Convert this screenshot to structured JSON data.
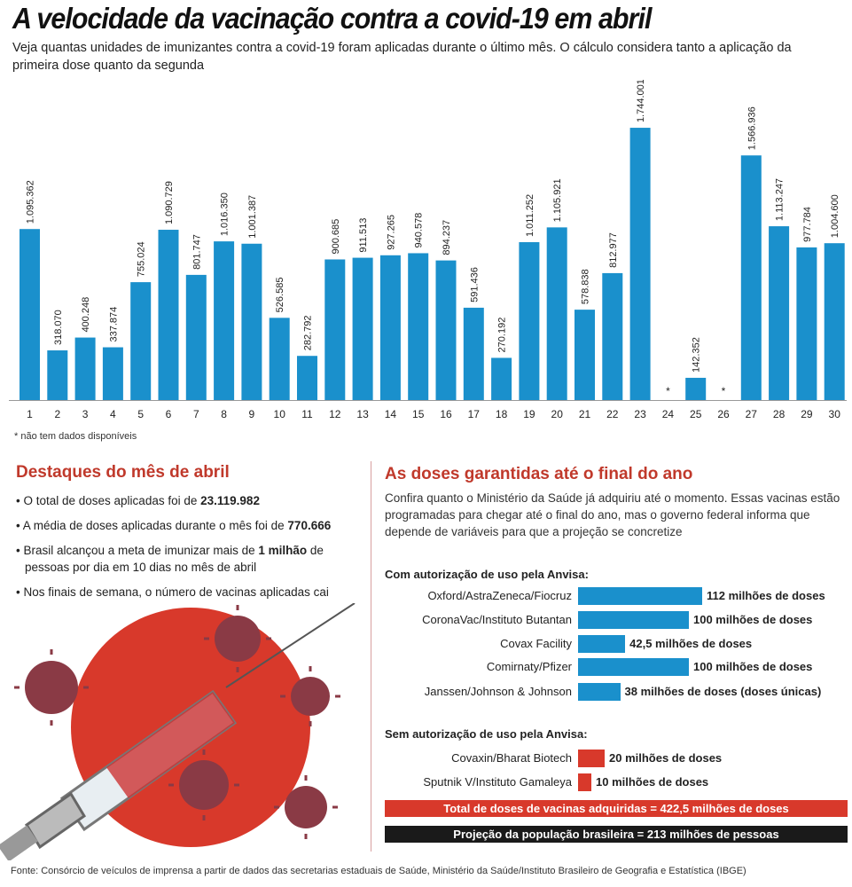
{
  "title": "A velocidade da vacinação contra a covid-19 em abril",
  "subtitle": "Veja quantas unidades de imunizantes contra a covid-19 foram aplicadas durante o último mês. O cálculo considera tanto a aplicação da primeira dose quanto da segunda",
  "note": "* não tem dados disponíveis",
  "colors": {
    "bar": "#1a90cc",
    "accent_red": "#d8392b",
    "black": "#1a1a1a",
    "title_red": "#c0392b"
  },
  "chart_data": [
    {
      "type": "bar",
      "categories": [
        "1",
        "2",
        "3",
        "4",
        "5",
        "6",
        "7",
        "8",
        "9",
        "10",
        "11",
        "12",
        "13",
        "14",
        "15",
        "16",
        "17",
        "18",
        "19",
        "20",
        "21",
        "22",
        "23",
        "24",
        "25",
        "26",
        "27",
        "28",
        "29",
        "30"
      ],
      "values": [
        1095362,
        318070,
        400248,
        337874,
        755024,
        1090729,
        801747,
        1016350,
        1001387,
        526585,
        282792,
        900685,
        911513,
        927265,
        940578,
        894237,
        591436,
        270192,
        1011252,
        1105921,
        578838,
        812977,
        1744001,
        null,
        142352,
        null,
        1566936,
        1113247,
        977784,
        1004600
      ],
      "labels": [
        "1.095.362",
        "318.070",
        "400.248",
        "337.874",
        "755.024",
        "1.090.729",
        "801.747",
        "1.016.350",
        "1.001.387",
        "526.585",
        "282.792",
        "900.685",
        "911.513",
        "927.265",
        "940.578",
        "894.237",
        "591.436",
        "270.192",
        "1.011.252",
        "1.105.921",
        "578.838",
        "812.977",
        "1.744.001",
        "*",
        "142.352",
        "*",
        "1.566.936",
        "1.113.247",
        "977.784",
        "1.004.600"
      ],
      "xlabel": "",
      "ylabel": ""
    },
    {
      "type": "bar",
      "orientation": "horizontal",
      "group": "Com autorização de uso pela Anvisa:",
      "categories": [
        "Oxford/AstraZeneca/Fiocruz",
        "CoronaVac/Instituto Butantan",
        "Covax Facility",
        "Comirnaty/Pfizer",
        "Janssen/Johnson & Johnson"
      ],
      "values": [
        112,
        100,
        42.5,
        100,
        38
      ],
      "labels": [
        "112 milhões de doses",
        "100 milhões de doses",
        "42,5 milhões de doses",
        "100 milhões de doses",
        "38 milhões de doses (doses únicas)"
      ]
    },
    {
      "type": "bar",
      "orientation": "horizontal",
      "group": "Sem autorização de uso pela Anvisa:",
      "categories": [
        "Covaxin/Bharat Biotech",
        "Sputnik V/Instituto Gamaleya"
      ],
      "values": [
        20,
        10
      ],
      "labels": [
        "20 milhões de doses",
        "10 milhões de doses"
      ]
    }
  ],
  "highlights": {
    "title": "Destaques do mês de abril",
    "items": [
      {
        "pre": "O total de doses aplicadas foi de ",
        "bold": "23.119.982",
        "post": ""
      },
      {
        "pre": "A média de doses aplicadas durante o mês foi de ",
        "bold": "770.666",
        "post": ""
      },
      {
        "pre": "Brasil alcançou a meta de imunizar mais de ",
        "bold": "1 milhão",
        "post": " de pessoas por dia em 10 dias no mês de abril"
      },
      {
        "pre": "Nos finais de semana, o número de vacinas aplicadas cai",
        "bold": "",
        "post": ""
      }
    ]
  },
  "doses": {
    "title": "As doses garantidas até o final do ano",
    "desc": "Confira quanto o Ministério da Saúde já adquiriu até o momento. Essas vacinas estão programadas para chegar até o final do ano, mas o governo federal informa que depende de variáveis para que a projeção se concretize",
    "total": "Total de doses de vacinas adquiridas = 422,5 milhões de doses",
    "projection": "Projeção da população brasileira = 213 milhões de pessoas"
  },
  "footer": "Fonte: Consórcio de veículos de imprensa a partir de dados das secretarias estaduais de Saúde, Ministério da Saúde/Instituto Brasileiro de Geografia e Estatística (IBGE)"
}
